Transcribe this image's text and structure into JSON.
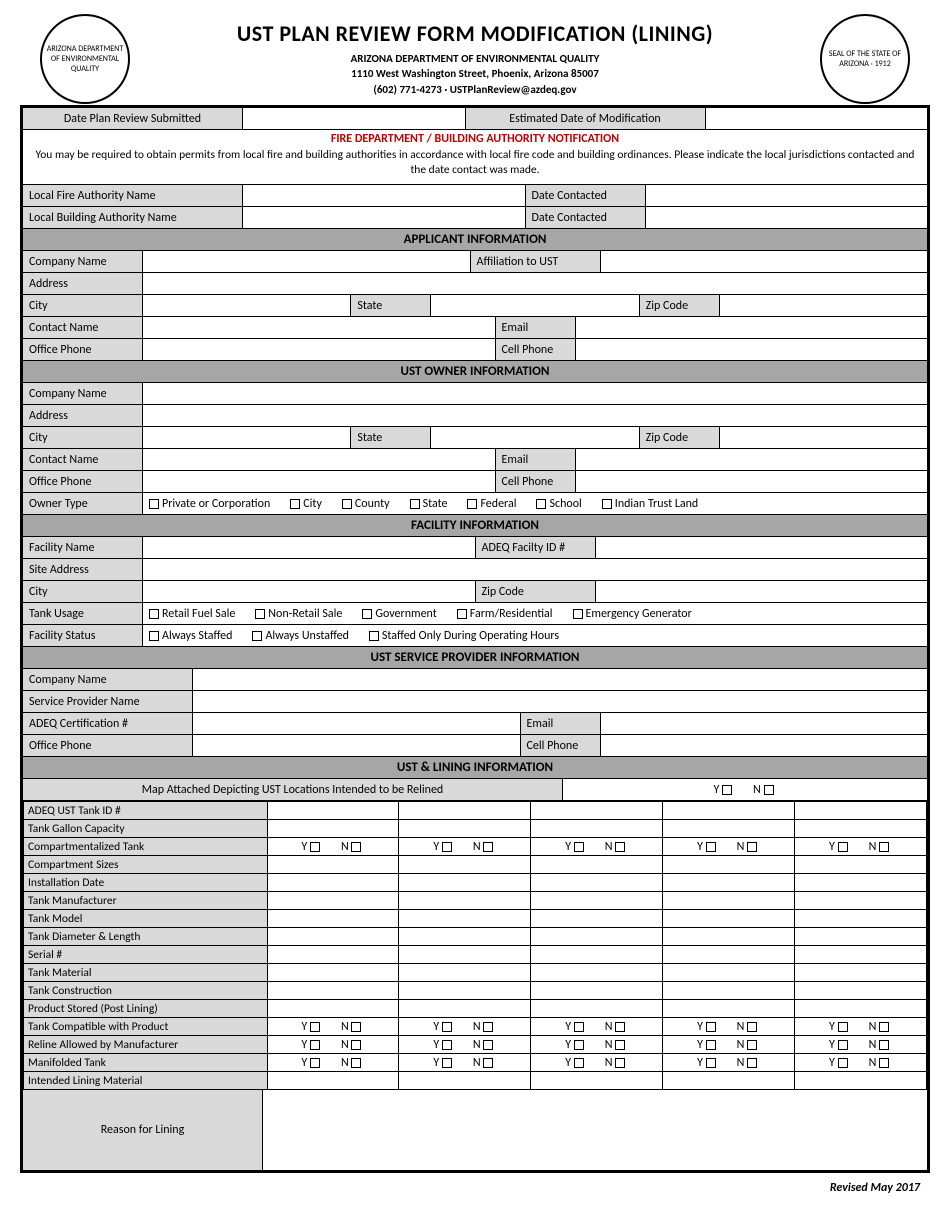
{
  "header": {
    "title": "UST PLAN REVIEW FORM MODIFICATION (LINING)",
    "agency": "ARIZONA DEPARTMENT OF ENVIRONMENTAL QUALITY",
    "address": "1110 West Washington Street, Phoenix, Arizona 85007",
    "contact": "(602) 771-4273  ·  USTPlanReview@azdeq.gov",
    "seal_left": "ARIZONA DEPARTMENT OF ENVIRONMENTAL QUALITY",
    "seal_right": "SEAL OF THE STATE OF ARIZONA · 1912"
  },
  "top": {
    "date_submitted_label": "Date Plan Review Submitted",
    "est_date_label": "Estimated Date of Modification"
  },
  "fire": {
    "header": "FIRE DEPARTMENT / BUILDING AUTHORITY NOTIFICATION",
    "notice": "You may be required to obtain permits from local fire and building authorities in accordance with local fire code and building ordinances. Please indicate the local jurisdictions contacted and the date contact was made.",
    "local_fire": "Local Fire Authority Name",
    "date_contacted1": "Date Contacted",
    "local_bldg": "Local Building Authority Name",
    "date_contacted2": "Date Contacted"
  },
  "applicant": {
    "header": "APPLICANT INFORMATION",
    "company": "Company Name",
    "affiliation": "Affiliation to UST",
    "address": "Address",
    "city": "City",
    "state": "State",
    "zip": "Zip Code",
    "contact": "Contact Name",
    "email": "Email",
    "office_phone": "Office Phone",
    "cell_phone": "Cell Phone"
  },
  "owner": {
    "header": "UST OWNER INFORMATION",
    "company": "Company Name",
    "address": "Address",
    "city": "City",
    "state": "State",
    "zip": "Zip Code",
    "contact": "Contact Name",
    "email": "Email",
    "office_phone": "Office Phone",
    "cell_phone": "Cell Phone",
    "owner_type": "Owner Type",
    "options": [
      "Private or Corporation",
      "City",
      "County",
      "State",
      "Federal",
      "School",
      "Indian Trust Land"
    ]
  },
  "facility": {
    "header": "FACILITY INFORMATION",
    "name": "Facility Name",
    "adeq_id": "ADEQ Facilty ID #",
    "site_address": "Site Address",
    "city": "City",
    "zip": "Zip Code",
    "tank_usage": "Tank Usage",
    "usage_options": [
      "Retail Fuel Sale",
      "Non-Retail Sale",
      "Government",
      "Farm/Residential",
      "Emergency Generator"
    ],
    "facility_status": "Facility Status",
    "status_options": [
      "Always Staffed",
      "Always Unstaffed",
      "Staffed Only During Operating Hours"
    ]
  },
  "provider": {
    "header": "UST SERVICE PROVIDER INFORMATION",
    "company": "Company Name",
    "sp_name": "Service Provider Name",
    "cert": "ADEQ Certification #",
    "email": "Email",
    "office_phone": "Office Phone",
    "cell_phone": "Cell Phone"
  },
  "lining": {
    "header": "UST & LINING INFORMATION",
    "map_label": "Map Attached Depicting UST Locations Intended to be Relined",
    "yes": "Y",
    "no": "N",
    "rows": [
      "ADEQ UST Tank ID #",
      "Tank Gallon Capacity",
      "Compartmentalized Tank",
      "Compartment Sizes",
      "Installation Date",
      "Tank Manufacturer",
      "Tank Model",
      "Tank Diameter & Length",
      "Serial #",
      "Tank Material",
      "Tank Construction",
      "Product Stored (Post Lining)",
      "Tank Compatible with Product",
      "Reline Allowed by Manufacturer",
      "Manifolded Tank",
      "Intended Lining Material"
    ],
    "yn_rows": [
      "Compartmentalized Tank",
      "Tank Compatible with Product",
      "Reline Allowed by Manufacturer",
      "Manifolded Tank"
    ],
    "reason": "Reason for Lining"
  },
  "footer": "Revised May 2017"
}
